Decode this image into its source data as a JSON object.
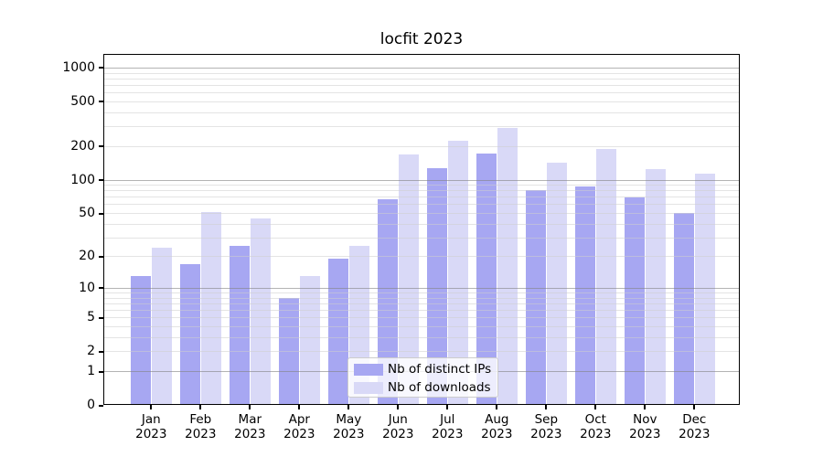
{
  "chart_data": {
    "type": "bar",
    "title": "locfit 2023",
    "categories": [
      "Jan 2023",
      "Feb 2023",
      "Mar 2023",
      "Apr 2023",
      "May 2023",
      "Jun 2023",
      "Jul 2023",
      "Aug 2023",
      "Sep 2023",
      "Oct 2023",
      "Nov 2023",
      "Dec 2023"
    ],
    "series": [
      {
        "name": "Nb of distinct IPs",
        "color": "#a7a7f2",
        "values": [
          13,
          17,
          25,
          8,
          19,
          67,
          127,
          171,
          80,
          87,
          69,
          50
        ]
      },
      {
        "name": "Nb of downloads",
        "color": "#d9d9f7",
        "values": [
          24,
          51,
          45,
          13,
          25,
          168,
          224,
          288,
          143,
          187,
          124,
          113
        ]
      }
    ],
    "xlabel": "",
    "ylabel": "",
    "yscale": "log1p",
    "yticks": [
      0,
      1,
      2,
      5,
      10,
      20,
      50,
      100,
      200,
      500,
      1000
    ],
    "ylim": [
      0,
      1300
    ],
    "grid": true,
    "legend_position": "lower center",
    "colors": {
      "grid_major": "#b0b0b0",
      "grid_minor": "#e4e4e4",
      "spine": "#000000",
      "tick": "#000000",
      "text": "#000000",
      "legend_border": "#cccccc"
    }
  }
}
